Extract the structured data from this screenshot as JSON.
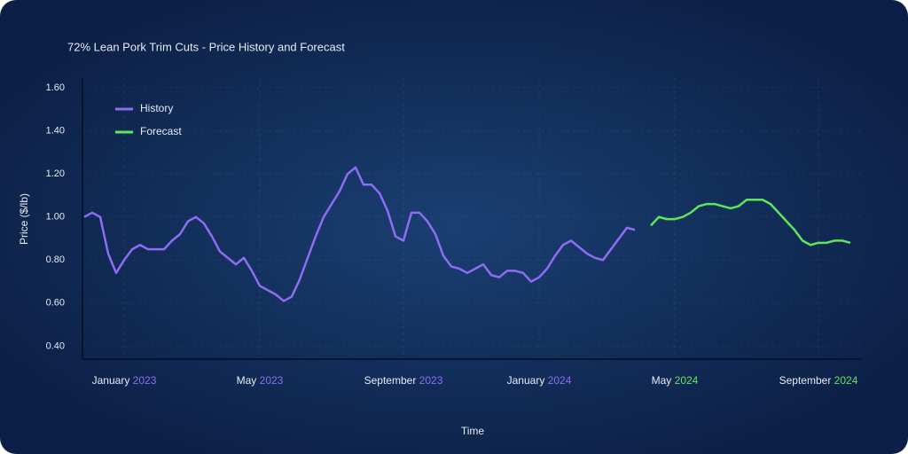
{
  "chart_data": {
    "type": "line",
    "title": "72% Lean Pork Trim Cuts - Price History and Forecast",
    "ylabel": "Price ($/lb)",
    "xlabel": "Time",
    "ylim": [
      0.34,
      1.645
    ],
    "yticks": [
      {
        "value": 0.4,
        "label": "0.40"
      },
      {
        "value": 0.6,
        "label": "0.60"
      },
      {
        "value": 0.8,
        "label": "0.80"
      },
      {
        "value": 1.0,
        "label": "1.00"
      },
      {
        "value": 1.2,
        "label": "1.20"
      },
      {
        "value": 1.4,
        "label": "1.40"
      },
      {
        "value": 1.6,
        "label": "1.60"
      }
    ],
    "xticks": [
      {
        "value": 5,
        "label": "January",
        "year": "2023"
      },
      {
        "value": 22,
        "label": "May",
        "year": "2023"
      },
      {
        "value": 40,
        "label": "September",
        "year": "2023"
      },
      {
        "value": 57,
        "label": "January",
        "year": "2024"
      },
      {
        "value": 74,
        "label": "May",
        "year": "2024"
      },
      {
        "value": 92,
        "label": "September",
        "year": "2024"
      }
    ],
    "legend": "top-left",
    "series": [
      {
        "name": "History",
        "color": "#8e6cf4",
        "values": [
          1.0,
          1.02,
          1.0,
          0.83,
          0.74,
          0.8,
          0.85,
          0.87,
          0.85,
          0.85,
          0.85,
          0.89,
          0.92,
          0.98,
          1.0,
          0.97,
          0.91,
          0.84,
          0.81,
          0.78,
          0.81,
          0.75,
          0.68,
          0.66,
          0.64,
          0.61,
          0.63,
          0.71,
          0.81,
          0.91,
          1.0,
          1.06,
          1.12,
          1.2,
          1.23,
          1.15,
          1.15,
          1.11,
          1.03,
          0.91,
          0.89,
          1.02,
          1.02,
          0.98,
          0.92,
          0.82,
          0.77,
          0.76,
          0.74,
          0.76,
          0.78,
          0.73,
          0.72,
          0.75,
          0.75,
          0.74,
          0.7,
          0.72,
          0.76,
          0.82,
          0.87,
          0.89,
          0.86,
          0.83,
          0.81,
          0.8,
          0.85,
          0.9,
          0.95,
          0.94,
          null,
          null,
          null,
          null,
          null,
          null,
          null,
          null,
          null,
          null,
          null,
          null,
          null,
          null,
          null,
          null,
          null,
          null,
          null,
          null,
          null,
          null,
          null,
          null,
          null,
          null,
          null
        ]
      },
      {
        "name": "Forecast",
        "color": "#5ee65a",
        "values": [
          null,
          null,
          null,
          null,
          null,
          null,
          null,
          null,
          null,
          null,
          null,
          null,
          null,
          null,
          null,
          null,
          null,
          null,
          null,
          null,
          null,
          null,
          null,
          null,
          null,
          null,
          null,
          null,
          null,
          null,
          null,
          null,
          null,
          null,
          null,
          null,
          null,
          null,
          null,
          null,
          null,
          null,
          null,
          null,
          null,
          null,
          null,
          null,
          null,
          null,
          null,
          null,
          null,
          null,
          null,
          null,
          null,
          null,
          null,
          null,
          null,
          null,
          null,
          null,
          null,
          null,
          null,
          null,
          null,
          null,
          null,
          0.96,
          1.0,
          0.99,
          0.99,
          1.0,
          1.02,
          1.05,
          1.06,
          1.06,
          1.05,
          1.04,
          1.05,
          1.08,
          1.08,
          1.08,
          1.06,
          1.02,
          0.98,
          0.94,
          0.89,
          0.87,
          0.88,
          0.88,
          0.89,
          0.89,
          0.88
        ]
      }
    ]
  }
}
